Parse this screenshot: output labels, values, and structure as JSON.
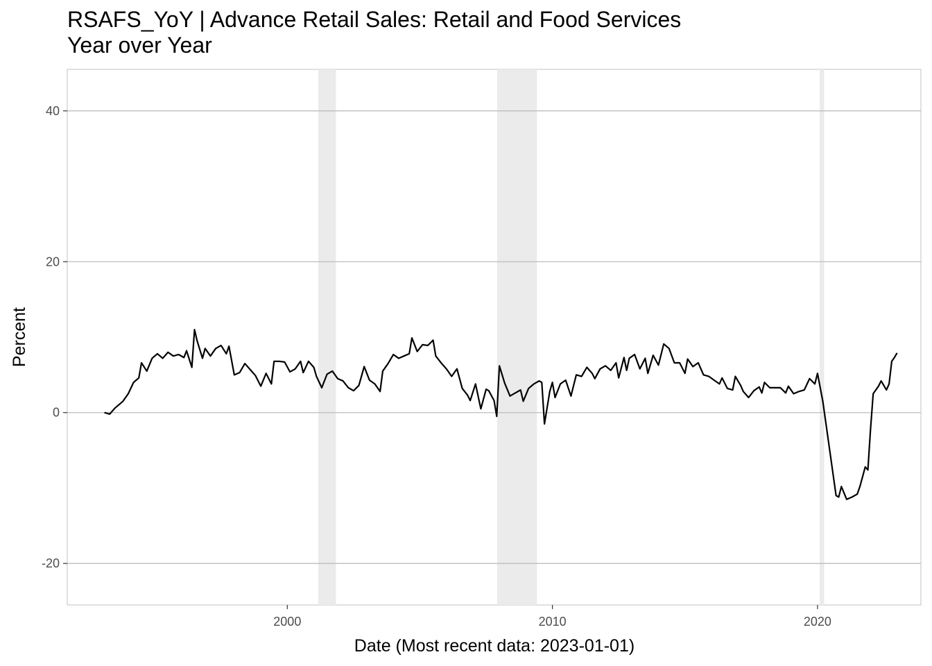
{
  "title_line1": "RSAFS_YoY | Advance Retail Sales: Retail and Food Services",
  "title_line2": "Year over Year",
  "chart_data": {
    "type": "line",
    "title": "RSAFS_YoY | Advance Retail Sales: Retail and Food Services",
    "subtitle": "Year over Year",
    "xlabel": "Date (Most recent data: 2023-01-01)",
    "ylabel": "Percent",
    "xlim": [
      1991.7,
      2023.9
    ],
    "ylim": [
      -25.5,
      45.5
    ],
    "x_ticks": [
      2000,
      2010,
      2020
    ],
    "x_tick_labels": [
      "2000",
      "2010",
      "2020"
    ],
    "y_ticks": [
      -20,
      0,
      20,
      40
    ],
    "y_tick_labels": [
      "-20",
      "0",
      "20",
      "40"
    ],
    "grid": "horizontal major",
    "line_color": "#000000",
    "recession_color": "#ebebeb",
    "recessions": [
      {
        "start": "2001-03-01",
        "end": "2001-11-01"
      },
      {
        "start": "2007-12-01",
        "end": "2009-06-01"
      },
      {
        "start": "2020-02-01",
        "end": "2020-04-01"
      }
    ],
    "series": [
      {
        "values": [
          [
            1993.1,
            0.0
          ],
          [
            1993.3,
            -0.2
          ],
          [
            1993.5,
            0.6
          ],
          [
            1993.8,
            1.5
          ],
          [
            1994.0,
            2.5
          ],
          [
            1994.2,
            4.0
          ],
          [
            1994.4,
            4.6
          ],
          [
            1994.5,
            6.6
          ],
          [
            1994.7,
            5.5
          ],
          [
            1994.9,
            7.2
          ],
          [
            1995.1,
            7.8
          ],
          [
            1995.3,
            7.2
          ],
          [
            1995.5,
            8.0
          ],
          [
            1995.7,
            7.5
          ],
          [
            1995.9,
            7.7
          ],
          [
            1996.1,
            7.3
          ],
          [
            1996.2,
            8.2
          ],
          [
            1996.4,
            6.0
          ],
          [
            1996.5,
            11.0
          ],
          [
            1996.6,
            9.5
          ],
          [
            1996.8,
            7.2
          ],
          [
            1996.9,
            8.5
          ],
          [
            1997.1,
            7.5
          ],
          [
            1997.3,
            8.5
          ],
          [
            1997.5,
            8.9
          ],
          [
            1997.7,
            7.8
          ],
          [
            1997.8,
            8.8
          ],
          [
            1998.0,
            5.0
          ],
          [
            1998.2,
            5.3
          ],
          [
            1998.4,
            6.5
          ],
          [
            1998.6,
            5.7
          ],
          [
            1998.8,
            4.9
          ],
          [
            1999.0,
            3.5
          ],
          [
            1999.2,
            5.2
          ],
          [
            1999.4,
            3.8
          ],
          [
            1999.5,
            6.8
          ],
          [
            1999.7,
            6.8
          ],
          [
            1999.9,
            6.7
          ],
          [
            2000.1,
            5.4
          ],
          [
            2000.3,
            5.8
          ],
          [
            2000.5,
            6.8
          ],
          [
            2000.6,
            5.3
          ],
          [
            2000.8,
            6.8
          ],
          [
            2001.0,
            6.0
          ],
          [
            2001.1,
            4.8
          ],
          [
            2001.3,
            3.3
          ],
          [
            2001.5,
            5.1
          ],
          [
            2001.7,
            5.5
          ],
          [
            2001.9,
            4.5
          ],
          [
            2002.1,
            4.2
          ],
          [
            2002.3,
            3.3
          ],
          [
            2002.5,
            2.9
          ],
          [
            2002.7,
            3.6
          ],
          [
            2002.9,
            6.1
          ],
          [
            2003.1,
            4.3
          ],
          [
            2003.3,
            3.8
          ],
          [
            2003.5,
            2.8
          ],
          [
            2003.6,
            5.5
          ],
          [
            2003.8,
            6.5
          ],
          [
            2004.0,
            7.7
          ],
          [
            2004.2,
            7.2
          ],
          [
            2004.4,
            7.5
          ],
          [
            2004.6,
            7.8
          ],
          [
            2004.7,
            9.9
          ],
          [
            2004.9,
            8.1
          ],
          [
            2005.1,
            9.0
          ],
          [
            2005.3,
            8.9
          ],
          [
            2005.5,
            9.6
          ],
          [
            2005.6,
            7.5
          ],
          [
            2005.8,
            6.6
          ],
          [
            2006.0,
            5.8
          ],
          [
            2006.2,
            4.8
          ],
          [
            2006.4,
            5.8
          ],
          [
            2006.6,
            3.2
          ],
          [
            2006.8,
            2.3
          ],
          [
            2006.9,
            1.6
          ],
          [
            2007.1,
            3.8
          ],
          [
            2007.3,
            0.5
          ],
          [
            2007.5,
            3.1
          ],
          [
            2007.6,
            2.9
          ],
          [
            2007.8,
            1.6
          ],
          [
            2007.9,
            -0.5
          ],
          [
            2008.0,
            6.2
          ],
          [
            2008.2,
            3.9
          ],
          [
            2008.4,
            2.2
          ],
          [
            2008.6,
            2.6
          ],
          [
            2008.8,
            3.0
          ],
          [
            2008.9,
            1.5
          ],
          [
            2009.1,
            3.2
          ],
          [
            2009.3,
            3.8
          ],
          [
            2009.5,
            4.2
          ],
          [
            2009.6,
            4.0
          ],
          [
            2009.7,
            -1.5
          ],
          [
            2009.9,
            2.8
          ],
          [
            2010.0,
            4.0
          ],
          [
            2010.1,
            2.0
          ],
          [
            2010.3,
            3.8
          ],
          [
            2010.5,
            4.3
          ],
          [
            2010.7,
            2.2
          ],
          [
            2010.9,
            5.0
          ],
          [
            2011.1,
            4.8
          ],
          [
            2011.3,
            6.0
          ],
          [
            2011.5,
            5.2
          ],
          [
            2011.6,
            4.5
          ],
          [
            2011.8,
            5.8
          ],
          [
            2012.0,
            6.2
          ],
          [
            2012.2,
            5.6
          ],
          [
            2012.4,
            6.6
          ],
          [
            2012.5,
            4.6
          ],
          [
            2012.7,
            7.3
          ],
          [
            2012.8,
            5.6
          ],
          [
            2012.9,
            7.2
          ],
          [
            2013.1,
            7.7
          ],
          [
            2013.3,
            5.8
          ],
          [
            2013.5,
            7.2
          ],
          [
            2013.6,
            5.2
          ],
          [
            2013.8,
            7.6
          ],
          [
            2014.0,
            6.3
          ],
          [
            2014.2,
            9.1
          ],
          [
            2014.4,
            8.5
          ],
          [
            2014.6,
            6.6
          ],
          [
            2014.8,
            6.6
          ],
          [
            2015.0,
            5.2
          ],
          [
            2015.1,
            7.1
          ],
          [
            2015.3,
            6.1
          ],
          [
            2015.5,
            6.6
          ],
          [
            2015.7,
            5.0
          ],
          [
            2015.9,
            4.8
          ],
          [
            2016.1,
            4.3
          ],
          [
            2016.3,
            3.8
          ],
          [
            2016.4,
            4.6
          ],
          [
            2016.6,
            3.2
          ],
          [
            2016.8,
            3.0
          ],
          [
            2016.9,
            4.8
          ],
          [
            2017.1,
            3.6
          ],
          [
            2017.2,
            2.8
          ],
          [
            2017.4,
            2.0
          ],
          [
            2017.6,
            2.9
          ],
          [
            2017.8,
            3.4
          ],
          [
            2017.9,
            2.6
          ],
          [
            2018.0,
            4.0
          ],
          [
            2018.2,
            3.3
          ],
          [
            2018.4,
            3.3
          ],
          [
            2018.6,
            3.3
          ],
          [
            2018.8,
            2.6
          ],
          [
            2018.9,
            3.5
          ],
          [
            2019.1,
            2.5
          ],
          [
            2019.3,
            2.8
          ],
          [
            2019.5,
            3.0
          ],
          [
            2019.7,
            4.5
          ],
          [
            2019.9,
            3.8
          ],
          [
            2020.0,
            5.2
          ],
          [
            2020.2,
            1.5
          ],
          [
            2020.4,
            -3.5
          ],
          [
            2020.6,
            -8.5
          ],
          [
            2020.7,
            -11.0
          ],
          [
            2020.8,
            -11.2
          ],
          [
            2020.9,
            -9.8
          ],
          [
            2021.1,
            -11.5
          ],
          [
            2021.3,
            -11.2
          ],
          [
            2021.5,
            -10.8
          ],
          [
            2021.6,
            -9.8
          ],
          [
            2021.8,
            -7.2
          ],
          [
            2021.9,
            -7.6
          ],
          [
            2022.0,
            -2.2
          ],
          [
            2022.1,
            2.5
          ],
          [
            2022.3,
            3.5
          ],
          [
            2022.4,
            4.2
          ],
          [
            2022.6,
            3.0
          ],
          [
            2022.7,
            3.8
          ],
          [
            2022.8,
            6.8
          ],
          [
            2022.9,
            7.3
          ],
          [
            2023.0,
            7.9
          ]
        ]
      }
    ]
  }
}
